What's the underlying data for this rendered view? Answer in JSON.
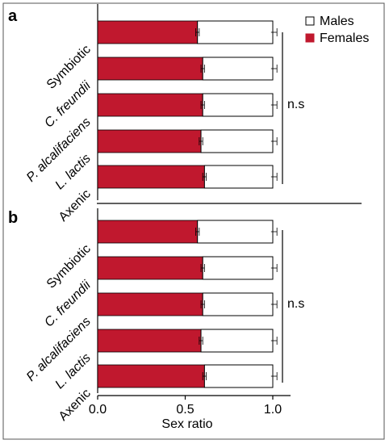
{
  "chart_data": [
    {
      "panel_label": "a",
      "type": "bar",
      "orientation": "horizontal",
      "stacked": true,
      "categories": [
        "Symbiotic",
        "C. freundii",
        "P. alcalifaciens",
        "L. lactis",
        "Axenic"
      ],
      "series": [
        {
          "name": "Females",
          "color": "#c0182e",
          "values": [
            0.57,
            0.6,
            0.6,
            0.59,
            0.61
          ],
          "errors": [
            0.01,
            0.01,
            0.01,
            0.01,
            0.01
          ]
        },
        {
          "name": "Males",
          "color": "#ffffff",
          "values": [
            0.43,
            0.4,
            0.4,
            0.41,
            0.39
          ],
          "errors": [
            0.01,
            0.01,
            0.01,
            0.01,
            0.01
          ]
        }
      ],
      "significance": "n.s",
      "legend": {
        "position": "top-right"
      },
      "xlim": [
        0,
        1.0
      ]
    },
    {
      "panel_label": "b",
      "type": "bar",
      "orientation": "horizontal",
      "stacked": true,
      "categories": [
        "Symbiotic",
        "C. freundii",
        "P. alcalifaciens",
        "L. lactis",
        "Axenic"
      ],
      "series": [
        {
          "name": "Females",
          "color": "#c0182e",
          "values": [
            0.57,
            0.6,
            0.6,
            0.59,
            0.61
          ],
          "errors": [
            0.01,
            0.01,
            0.01,
            0.01,
            0.01
          ]
        },
        {
          "name": "Males",
          "color": "#ffffff",
          "values": [
            0.43,
            0.4,
            0.4,
            0.41,
            0.39
          ],
          "errors": [
            0.01,
            0.01,
            0.01,
            0.01,
            0.01
          ]
        }
      ],
      "significance": "n.s",
      "xlabel": "Sex ratio",
      "xticks": [
        "0.0",
        "0.5",
        "1.0"
      ],
      "xlim": [
        0,
        1.0
      ]
    }
  ]
}
